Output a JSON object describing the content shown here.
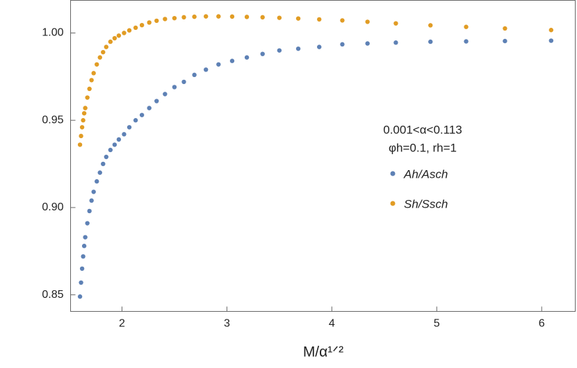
{
  "chart_data": {
    "type": "scatter",
    "x_label": "M/α¹ᐟ²",
    "annotations": [
      "0.001<α<0.113",
      "φh=0.1,  rh=1"
    ],
    "x": [
      1.6,
      1.61,
      1.62,
      1.63,
      1.64,
      1.65,
      1.67,
      1.69,
      1.71,
      1.73,
      1.76,
      1.79,
      1.82,
      1.85,
      1.89,
      1.93,
      1.97,
      2.02,
      2.07,
      2.13,
      2.19,
      2.26,
      2.33,
      2.41,
      2.5,
      2.59,
      2.69,
      2.8,
      2.92,
      3.05,
      3.19,
      3.34,
      3.5,
      3.68,
      3.88,
      4.1,
      4.34,
      4.61,
      4.94,
      5.28,
      5.65,
      6.09
    ],
    "series": [
      {
        "name": "Ah/Asch",
        "color": "#5e81b5",
        "values": [
          0.849,
          0.857,
          0.865,
          0.872,
          0.878,
          0.883,
          0.891,
          0.898,
          0.904,
          0.909,
          0.915,
          0.92,
          0.925,
          0.929,
          0.933,
          0.936,
          0.939,
          0.942,
          0.946,
          0.95,
          0.953,
          0.957,
          0.961,
          0.965,
          0.969,
          0.972,
          0.976,
          0.979,
          0.982,
          0.984,
          0.986,
          0.988,
          0.99,
          0.991,
          0.992,
          0.9935,
          0.994,
          0.9945,
          0.995,
          0.9952,
          0.9954,
          0.9956
        ]
      },
      {
        "name": "Sh/Ssch",
        "color": "#e19c24",
        "values": [
          0.936,
          0.941,
          0.946,
          0.95,
          0.954,
          0.957,
          0.963,
          0.968,
          0.973,
          0.977,
          0.982,
          0.986,
          0.989,
          0.992,
          0.995,
          0.997,
          0.9985,
          1.0,
          1.0015,
          1.003,
          1.0045,
          1.006,
          1.007,
          1.008,
          1.0085,
          1.009,
          1.0093,
          1.0095,
          1.0095,
          1.0094,
          1.0092,
          1.009,
          1.0087,
          1.0083,
          1.0078,
          1.0072,
          1.0064,
          1.0055,
          1.0044,
          1.0035,
          1.0026,
          1.0017
        ]
      }
    ],
    "xlim": [
      1.51,
      6.32
    ],
    "ylim": [
      0.8405,
      1.0187
    ],
    "xticks": [
      2,
      3,
      4,
      5,
      6
    ],
    "yticks": [
      {
        "value": 0.85,
        "label": "0.85"
      },
      {
        "value": 0.9,
        "label": "0.90"
      },
      {
        "value": 0.95,
        "label": "0.95"
      },
      {
        "value": 1,
        "label": "1.00"
      }
    ]
  }
}
